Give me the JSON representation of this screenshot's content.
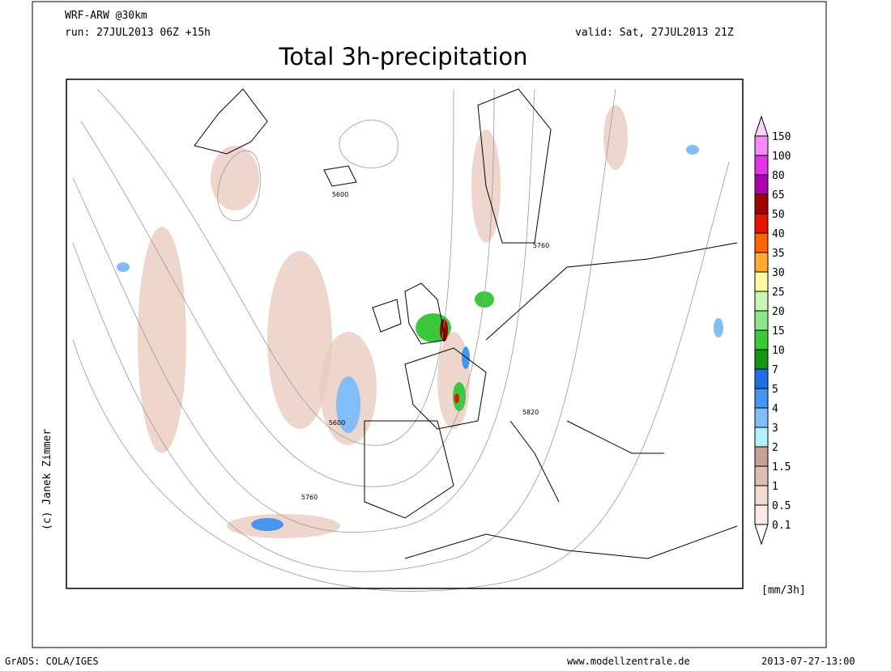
{
  "header": {
    "model": "WRF-ARW @30km",
    "run": "run: 27JUL2013 06Z +15h",
    "valid": "valid: Sat, 27JUL2013 21Z",
    "title": "Total 3h-precipitation"
  },
  "map": {
    "contour_labels": [
      "5600",
      "5760",
      "5600",
      "5760",
      "5820"
    ],
    "credit": "(c) Janek Zimmer"
  },
  "colorbar": {
    "unit": "[mm/3h]",
    "levels": [
      {
        "label": "150",
        "color": "#ffd2ff"
      },
      {
        "label": "100",
        "color": "#f58cf5"
      },
      {
        "label": "80",
        "color": "#e632e6"
      },
      {
        "label": "65",
        "color": "#aa00aa"
      },
      {
        "label": "50",
        "color": "#a00000"
      },
      {
        "label": "40",
        "color": "#e61400"
      },
      {
        "label": "35",
        "color": "#ff6400"
      },
      {
        "label": "30",
        "color": "#ffaa32"
      },
      {
        "label": "25",
        "color": "#fffaa0"
      },
      {
        "label": "20",
        "color": "#c8f5b4"
      },
      {
        "label": "15",
        "color": "#8ce68c"
      },
      {
        "label": "10",
        "color": "#3cc83c"
      },
      {
        "label": "7",
        "color": "#149614"
      },
      {
        "label": "5",
        "color": "#1e6ee6"
      },
      {
        "label": "4",
        "color": "#4696f0"
      },
      {
        "label": "3",
        "color": "#82bef5"
      },
      {
        "label": "2",
        "color": "#b4f0fa"
      },
      {
        "label": "1.5",
        "color": "#c8a096"
      },
      {
        "label": "1",
        "color": "#dcbeb4"
      },
      {
        "label": "0.5",
        "color": "#f0dcd2"
      },
      {
        "label": "0.1",
        "color": "#faebe6"
      }
    ]
  },
  "footer": {
    "left": "GrADS: COLA/IGES",
    "center": "www.modellzentrale.de",
    "right": "2013-07-27-13:00"
  }
}
